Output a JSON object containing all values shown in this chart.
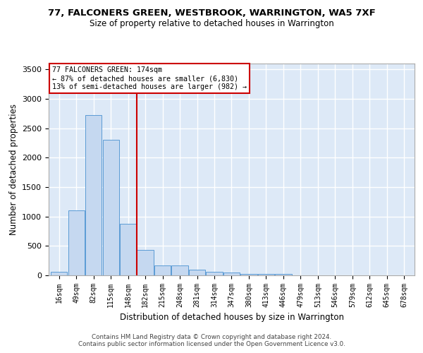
{
  "title": "77, FALCONERS GREEN, WESTBROOK, WARRINGTON, WA5 7XF",
  "subtitle": "Size of property relative to detached houses in Warrington",
  "xlabel": "Distribution of detached houses by size in Warrington",
  "ylabel": "Number of detached properties",
  "bar_color": "#c5d8f0",
  "bar_edge_color": "#5b9bd5",
  "background_color": "#dde9f7",
  "grid_color": "#ffffff",
  "bins": [
    "16sqm",
    "49sqm",
    "82sqm",
    "115sqm",
    "148sqm",
    "182sqm",
    "215sqm",
    "248sqm",
    "281sqm",
    "314sqm",
    "347sqm",
    "380sqm",
    "413sqm",
    "446sqm",
    "479sqm",
    "513sqm",
    "546sqm",
    "579sqm",
    "612sqm",
    "645sqm",
    "678sqm"
  ],
  "values": [
    55,
    1110,
    2730,
    2300,
    880,
    430,
    170,
    165,
    95,
    65,
    50,
    30,
    20,
    25,
    0,
    0,
    0,
    0,
    0,
    0,
    0
  ],
  "vline_x_index": 5,
  "annotation_line1": "77 FALCONERS GREEN: 174sqm",
  "annotation_line2": "← 87% of detached houses are smaller (6,830)",
  "annotation_line3": "13% of semi-detached houses are larger (982) →",
  "annotation_box_color": "#ffffff",
  "annotation_border_color": "#cc0000",
  "vline_color": "#cc0000",
  "ylim": [
    0,
    3600
  ],
  "yticks": [
    0,
    500,
    1000,
    1500,
    2000,
    2500,
    3000,
    3500
  ],
  "footer1": "Contains HM Land Registry data © Crown copyright and database right 2024.",
  "footer2": "Contains public sector information licensed under the Open Government Licence v3.0."
}
